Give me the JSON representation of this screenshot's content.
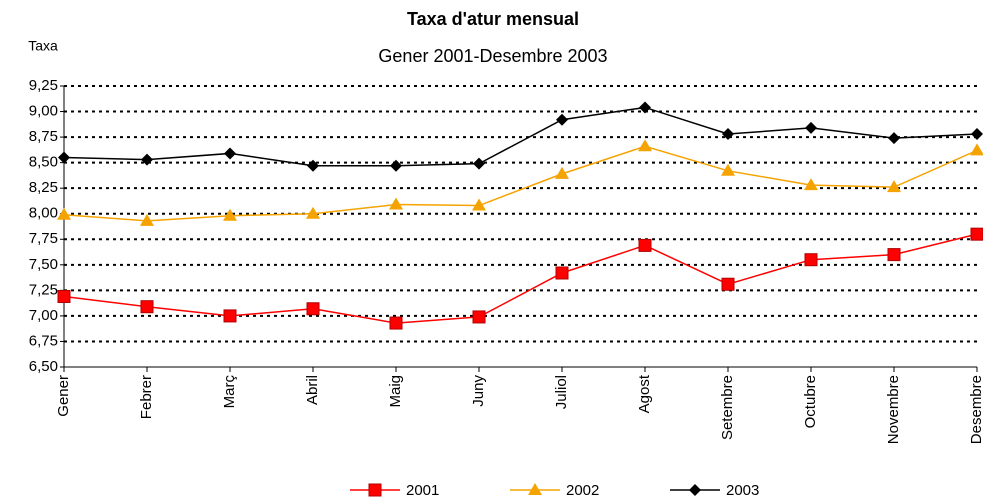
{
  "chart_data": {
    "type": "line",
    "title": "Taxa d'atur mensual",
    "subtitle": "Gener 2001-Desembre 2003",
    "ylabel": "Taxa",
    "categories": [
      "Gener",
      "Febrer",
      "Març",
      "Abril",
      "Maig",
      "Juny",
      "Juliol",
      "Agost",
      "Setembre",
      "Octubre",
      "Novembre",
      "Desembre"
    ],
    "series": [
      {
        "name": "2001",
        "color": "#ff0000",
        "marker": "square",
        "values": [
          7.19,
          7.09,
          7.0,
          7.07,
          6.93,
          6.99,
          7.42,
          7.69,
          7.31,
          7.55,
          7.6,
          7.8
        ]
      },
      {
        "name": "2002",
        "color": "#f5a300",
        "marker": "triangle",
        "values": [
          7.99,
          7.93,
          7.98,
          8.0,
          8.09,
          8.08,
          8.39,
          8.66,
          8.42,
          8.28,
          8.26,
          8.62
        ]
      },
      {
        "name": "2003",
        "color": "#000000",
        "marker": "diamond",
        "values": [
          8.55,
          8.53,
          8.59,
          8.47,
          8.47,
          8.49,
          8.92,
          9.04,
          8.78,
          8.84,
          8.74,
          8.78
        ]
      }
    ],
    "ylim": [
      6.5,
      9.25
    ],
    "yticks": [
      {
        "value": 6.5,
        "label": "6,50"
      },
      {
        "value": 6.75,
        "label": "6,75"
      },
      {
        "value": 7.0,
        "label": "7,00"
      },
      {
        "value": 7.25,
        "label": "7,25"
      },
      {
        "value": 7.5,
        "label": "7,50"
      },
      {
        "value": 7.75,
        "label": "7,75"
      },
      {
        "value": 8.0,
        "label": "8,00"
      },
      {
        "value": 8.25,
        "label": "8,25"
      },
      {
        "value": 8.5,
        "label": "8,50"
      },
      {
        "value": 8.75,
        "label": "8,75"
      },
      {
        "value": 9.0,
        "label": "9,00"
      },
      {
        "value": 9.25,
        "label": "9,25"
      }
    ],
    "grid": true,
    "legend": "bottom"
  }
}
